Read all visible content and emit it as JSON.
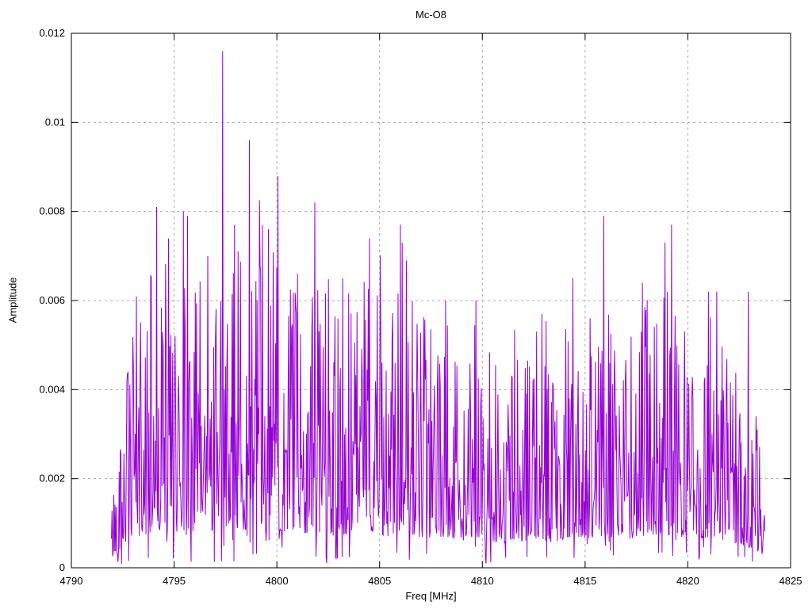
{
  "chart_data": {
    "type": "line",
    "title": "Mc-O8",
    "xlabel": "Freq [MHz]",
    "ylabel": "Amplitude",
    "xlim": [
      4790,
      4825
    ],
    "ylim": [
      0,
      0.012
    ],
    "x_tick_values": [
      4790,
      4795,
      4800,
      4805,
      4810,
      4815,
      4820,
      4825
    ],
    "x_tick_labels": [
      "4790",
      "4795",
      "4800",
      "4805",
      "4810",
      "4815",
      "4820",
      "4825"
    ],
    "y_tick_values": [
      0,
      0.002,
      0.004,
      0.006,
      0.008,
      0.01,
      0.012
    ],
    "y_tick_labels": [
      "0",
      "0.002",
      "0.004",
      "0.006",
      "0.008",
      "0.01",
      "0.012"
    ],
    "grid": true,
    "legend": "none",
    "series_name": "Mc-O8 spectrum",
    "series_color": "#9400d3",
    "grid_color": "#a8a8a8",
    "border_color": "#000000",
    "data_x_range": [
      4791.95,
      4823.75
    ],
    "n_points": 1100,
    "noise_seed": 42,
    "noise_floor": 0.0002,
    "envelope": [
      [
        4791.95,
        0.0016
      ],
      [
        4792.2,
        0.0028
      ],
      [
        4792.6,
        0.0047
      ],
      [
        4793.2,
        0.0055
      ],
      [
        4793.8,
        0.0066
      ],
      [
        4794.3,
        0.007
      ],
      [
        4795.0,
        0.0066
      ],
      [
        4795.6,
        0.0071
      ],
      [
        4796.3,
        0.0066
      ],
      [
        4797.1,
        0.007
      ],
      [
        4797.9,
        0.0072
      ],
      [
        4798.7,
        0.0071
      ],
      [
        4799.5,
        0.0073
      ],
      [
        4800.1,
        0.007
      ],
      [
        4800.9,
        0.0063
      ],
      [
        4801.8,
        0.0067
      ],
      [
        4802.7,
        0.0059
      ],
      [
        4803.6,
        0.0063
      ],
      [
        4804.6,
        0.0069
      ],
      [
        4805.4,
        0.0058
      ],
      [
        4806.1,
        0.007
      ],
      [
        4807.0,
        0.0056
      ],
      [
        4808.2,
        0.0058
      ],
      [
        4809.2,
        0.005
      ],
      [
        4809.8,
        0.0057
      ],
      [
        4810.6,
        0.0046
      ],
      [
        4811.6,
        0.0047
      ],
      [
        4812.7,
        0.0054
      ],
      [
        4813.4,
        0.0047
      ],
      [
        4814.4,
        0.0059
      ],
      [
        4815.2,
        0.0054
      ],
      [
        4815.9,
        0.006
      ],
      [
        4816.8,
        0.0051
      ],
      [
        4817.9,
        0.006
      ],
      [
        4818.8,
        0.0064
      ],
      [
        4819.4,
        0.0059
      ],
      [
        4820.3,
        0.0051
      ],
      [
        4821.2,
        0.0059
      ],
      [
        4822.2,
        0.0046
      ],
      [
        4823.0,
        0.0038
      ],
      [
        4823.5,
        0.0029
      ],
      [
        4823.75,
        0.0018
      ]
    ],
    "peaks": [
      [
        4794.15,
        0.0081
      ],
      [
        4795.45,
        0.008
      ],
      [
        4795.65,
        0.0079
      ],
      [
        4796.65,
        0.007
      ],
      [
        4797.35,
        0.0116
      ],
      [
        4797.95,
        0.0077
      ],
      [
        4798.65,
        0.0096
      ],
      [
        4799.3,
        0.0077
      ],
      [
        4799.6,
        0.0076
      ],
      [
        4800.05,
        0.0088
      ],
      [
        4801.0,
        0.0066
      ],
      [
        4801.85,
        0.0082
      ],
      [
        4803.2,
        0.0065
      ],
      [
        4804.5,
        0.0074
      ],
      [
        4806.0,
        0.0077
      ],
      [
        4806.3,
        0.0069
      ],
      [
        4808.2,
        0.006
      ],
      [
        4809.7,
        0.006
      ],
      [
        4812.9,
        0.0057
      ],
      [
        4814.4,
        0.0065
      ],
      [
        4815.9,
        0.0079
      ],
      [
        4817.8,
        0.0064
      ],
      [
        4818.9,
        0.0073
      ],
      [
        4819.2,
        0.0077
      ],
      [
        4821.0,
        0.0062
      ],
      [
        4821.4,
        0.0062
      ],
      [
        4822.95,
        0.0062
      ]
    ]
  }
}
